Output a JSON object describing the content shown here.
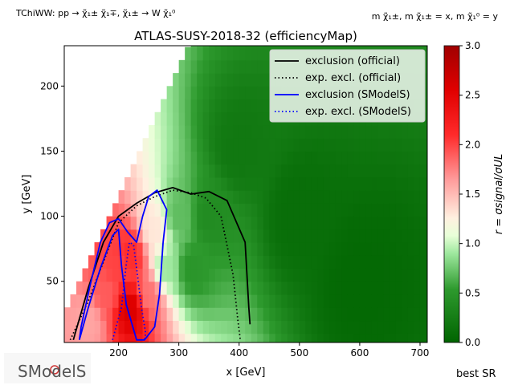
{
  "header": {
    "process": "TChiWW: pp → χ̃₁± χ̃₁∓, χ̃₁± → W χ̃₁⁰",
    "mass_map": "m χ̃₁±, m χ̃₁± = x, m χ̃₁⁰ = y"
  },
  "chart_data": {
    "type": "heatmap",
    "title": "ATLAS-SUSY-2018-32 (efficiencyMap)",
    "xlabel": "x [GeV]",
    "ylabel": "y [GeV]",
    "xlim": [
      110,
      712
    ],
    "ylim": [
      3,
      231
    ],
    "xticks": [
      200,
      300,
      400,
      500,
      600,
      700
    ],
    "yticks": [
      50,
      100,
      150,
      200
    ],
    "grid": false,
    "colorbar": {
      "label": "r = σsignal/σUL",
      "range": [
        0.0,
        3.0
      ],
      "ticks": [
        0.0,
        0.5,
        1.0,
        1.5,
        2.0,
        2.5,
        3.0
      ],
      "colors": {
        "low": "#006400",
        "mid": "#ffffff",
        "high": "#cc0000"
      }
    },
    "grid_region": {
      "x_min": 110,
      "x_max": 712,
      "x_step": 10,
      "y_min": 5,
      "y_step": 10,
      "diagonal_offset": 0,
      "note": "filled only for y < x - 80"
    },
    "r_samples": [
      {
        "x": 150,
        "y": 20,
        "r": 1.6
      },
      {
        "x": 180,
        "y": 40,
        "r": 1.9
      },
      {
        "x": 200,
        "y": 60,
        "r": 2.0
      },
      {
        "x": 220,
        "y": 30,
        "r": 2.6
      },
      {
        "x": 220,
        "y": 70,
        "r": 2.1
      },
      {
        "x": 250,
        "y": 40,
        "r": 1.8
      },
      {
        "x": 260,
        "y": 90,
        "r": 1.3
      },
      {
        "x": 280,
        "y": 60,
        "r": 0.9
      },
      {
        "x": 300,
        "y": 100,
        "r": 0.7
      },
      {
        "x": 320,
        "y": 60,
        "r": 0.5
      },
      {
        "x": 350,
        "y": 100,
        "r": 0.4
      },
      {
        "x": 400,
        "y": 150,
        "r": 0.2
      },
      {
        "x": 500,
        "y": 100,
        "r": 0.1
      },
      {
        "x": 600,
        "y": 50,
        "r": 0.05
      }
    ],
    "series": [
      {
        "name": "exclusion (official)",
        "color": "#000000",
        "style": "solid",
        "x": [
          125,
          150,
          175,
          200,
          230,
          260,
          290,
          320,
          350,
          380,
          410,
          416,
          418
        ],
        "y": [
          5,
          45,
          80,
          100,
          110,
          118,
          122,
          117,
          119,
          112,
          80,
          30,
          17
        ]
      },
      {
        "name": "exp. excl. (official)",
        "color": "#000000",
        "style": "dotted",
        "x": [
          120,
          150,
          175,
          200,
          230,
          260,
          290,
          320,
          345,
          370,
          390,
          398,
          402
        ],
        "y": [
          5,
          35,
          65,
          95,
          108,
          115,
          120,
          118,
          114,
          100,
          55,
          20,
          5
        ]
      },
      {
        "name": "exclusion (SModelS)",
        "color": "#0000ff",
        "style": "solid",
        "x": [
          135,
          150,
          170,
          190,
          200,
          205,
          213,
          230,
          243,
          260,
          268,
          274,
          280,
          264,
          250,
          240,
          230,
          215,
          200,
          185,
          170,
          152,
          138,
          135
        ],
        "y": [
          5,
          30,
          60,
          85,
          90,
          62,
          32,
          5,
          5,
          15,
          40,
          80,
          105,
          120,
          115,
          100,
          80,
          88,
          98,
          95,
          80,
          45,
          15,
          5
        ]
      },
      {
        "name": "exp. excl. (SModelS)",
        "color": "#0000ff",
        "style": "dotted",
        "x": [
          190,
          205,
          212,
          218,
          225,
          230,
          238,
          245,
          243
        ],
        "y": [
          5,
          30,
          60,
          80,
          78,
          60,
          30,
          10,
          5
        ]
      }
    ],
    "legend_position": "top-right"
  },
  "footer": {
    "logo_text": "SModelS",
    "best_sr_label": "best SR"
  }
}
